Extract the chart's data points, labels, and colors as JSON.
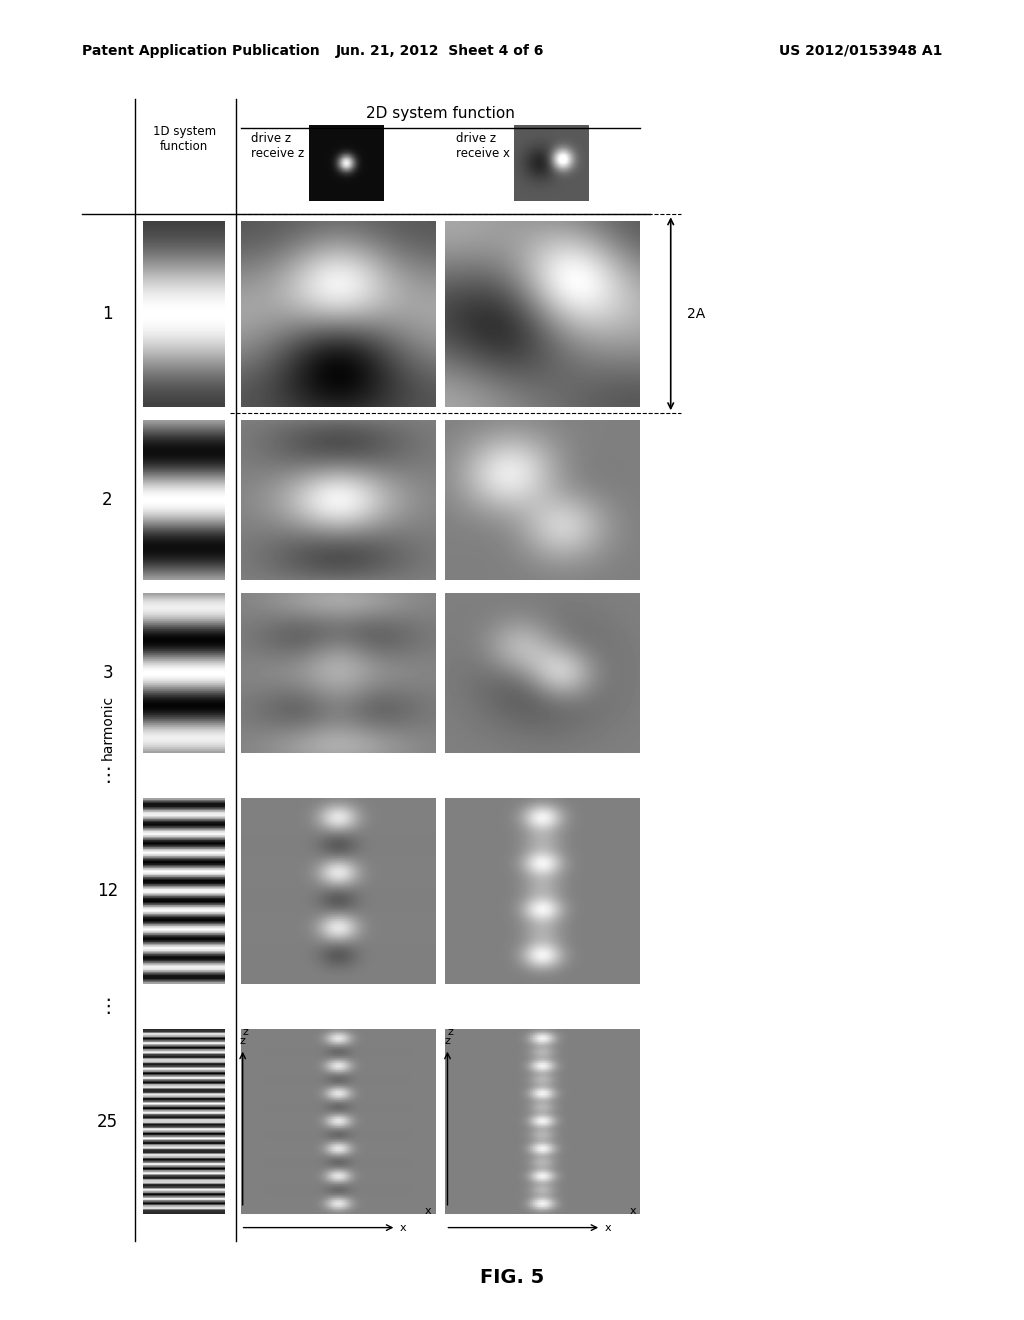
{
  "title_left": "Patent Application Publication",
  "title_center": "Jun. 21, 2012  Sheet 4 of 6",
  "title_right": "US 2012/0153948 A1",
  "fig_label": "FIG. 5",
  "col_header_harmonic": "harmonic",
  "col_header_1d": "1D system\nfunction",
  "col_header_2d": "2D system function",
  "col_header_dz_rz": "drive z\nreceive z",
  "col_header_dz_rx": "drive z\nreceive x",
  "harmonics": [
    "1",
    "2",
    "3",
    "12",
    "25"
  ],
  "dots_label": "⋮",
  "annotation_2A": "2A",
  "bg_color": "#ffffff"
}
